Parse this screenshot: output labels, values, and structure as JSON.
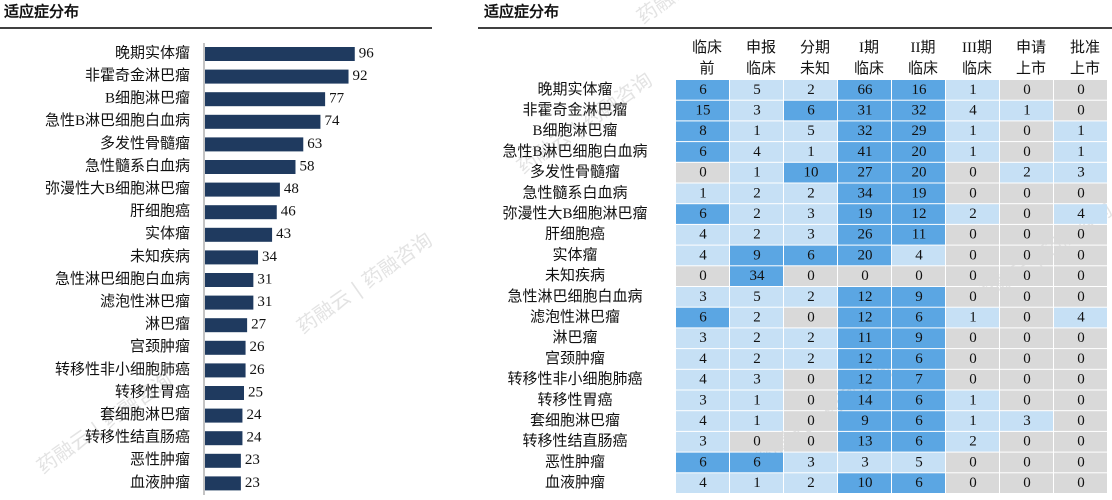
{
  "chart_data": [
    {
      "type": "bar",
      "orientation": "horizontal",
      "title": "适应症分布",
      "categories": [
        "晚期实体瘤",
        "非霍奇金淋巴瘤",
        "B细胞淋巴瘤",
        "急性B淋巴细胞白血病",
        "多发性骨髓瘤",
        "急性髓系白血病",
        "弥漫性大B细胞淋巴瘤",
        "肝细胞癌",
        "实体瘤",
        "未知疾病",
        "急性淋巴细胞白血病",
        "滤泡性淋巴瘤",
        "淋巴瘤",
        "宫颈肿瘤",
        "转移性非小细胞肺癌",
        "转移性胃癌",
        "套细胞淋巴瘤",
        "转移性结直肠癌",
        "恶性肿瘤",
        "血液肿瘤"
      ],
      "values": [
        96,
        92,
        77,
        74,
        63,
        58,
        48,
        46,
        43,
        34,
        31,
        31,
        27,
        26,
        26,
        25,
        24,
        24,
        23,
        23
      ],
      "color": "#1f3a5f",
      "xlim": [
        0,
        100
      ]
    },
    {
      "type": "heatmap",
      "title": "适应症分布",
      "columns": [
        "临床前",
        "申报临床",
        "分期未知",
        "I期临床",
        "II期临床",
        "III期临床",
        "申请上市",
        "批准上市"
      ],
      "rows": [
        "晚期实体瘤",
        "非霍奇金淋巴瘤",
        "B细胞淋巴瘤",
        "急性B淋巴细胞白血病",
        "多发性骨髓瘤",
        "急性髓系白血病",
        "弥漫性大B细胞淋巴瘤",
        "肝细胞癌",
        "实体瘤",
        "未知疾病",
        "急性淋巴细胞白血病",
        "滤泡性淋巴瘤",
        "淋巴瘤",
        "宫颈肿瘤",
        "转移性非小细胞肺癌",
        "转移性胃癌",
        "套细胞淋巴瘤",
        "转移性结直肠癌",
        "恶性肿瘤",
        "血液肿瘤"
      ],
      "values": [
        [
          6,
          5,
          2,
          66,
          16,
          1,
          0,
          0
        ],
        [
          15,
          3,
          6,
          31,
          32,
          4,
          1,
          0
        ],
        [
          8,
          1,
          5,
          32,
          29,
          1,
          0,
          1
        ],
        [
          6,
          4,
          1,
          41,
          20,
          1,
          0,
          1
        ],
        [
          0,
          1,
          10,
          27,
          20,
          0,
          2,
          3
        ],
        [
          1,
          2,
          2,
          34,
          19,
          0,
          0,
          0
        ],
        [
          6,
          2,
          3,
          19,
          12,
          2,
          0,
          4
        ],
        [
          4,
          2,
          3,
          26,
          11,
          0,
          0,
          0
        ],
        [
          4,
          9,
          6,
          20,
          4,
          0,
          0,
          0
        ],
        [
          0,
          34,
          0,
          0,
          0,
          0,
          0,
          0
        ],
        [
          3,
          5,
          2,
          12,
          9,
          0,
          0,
          0
        ],
        [
          6,
          2,
          0,
          12,
          6,
          1,
          0,
          4
        ],
        [
          3,
          2,
          2,
          11,
          9,
          0,
          0,
          0
        ],
        [
          4,
          2,
          2,
          12,
          6,
          0,
          0,
          0
        ],
        [
          4,
          3,
          0,
          12,
          7,
          0,
          0,
          0
        ],
        [
          3,
          1,
          0,
          14,
          6,
          1,
          0,
          0
        ],
        [
          4,
          1,
          0,
          9,
          6,
          1,
          3,
          0
        ],
        [
          3,
          0,
          0,
          13,
          6,
          2,
          0,
          0
        ],
        [
          6,
          6,
          3,
          3,
          5,
          0,
          0,
          0
        ],
        [
          4,
          1,
          2,
          10,
          6,
          0,
          0,
          0
        ]
      ],
      "colors": {
        "zero": "#d9d9d9",
        "low": "#c6e0f5",
        "high": "#5ba6e3"
      },
      "high_threshold": [
        6,
        6,
        6,
        9,
        6,
        null,
        null,
        null
      ]
    }
  ],
  "watermark": "药融云 | 药融咨询"
}
